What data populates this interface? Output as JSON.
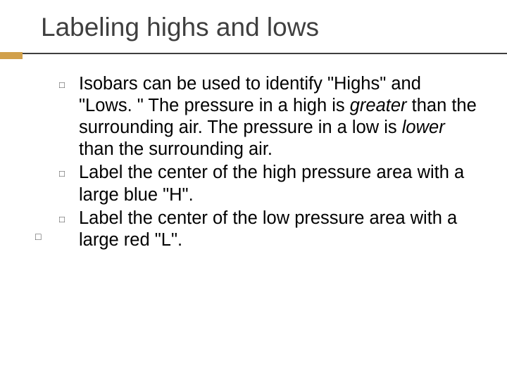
{
  "title": "Labeling highs and lows",
  "colors": {
    "background": "#ffffff",
    "title_text": "#3f3f3f",
    "body_text": "#000000",
    "bullet": "#3f3f3f",
    "divider_line": "#3f3f3f",
    "divider_accent": "#d1a04b"
  },
  "typography": {
    "title_fontsize": 37,
    "body_fontsize": 25.5,
    "bullet_glyph": "□"
  },
  "bullets": {
    "outer": "□",
    "b1": "□",
    "b2": "□",
    "b3": "□"
  },
  "items": {
    "i1_pre": "Isobars can be used to identify \"Highs\" and \"Lows. \" The pressure in a high is ",
    "i1_em1": "greater",
    "i1_mid": " than the surrounding air. The pressure in a low is ",
    "i1_em2": "lower",
    "i1_post": " than the surrounding air.",
    "i2": "Label the center of the high pressure area with a large blue \"H\".",
    "i3": "Label the center of the low pressure area with a large red \"L\"."
  }
}
